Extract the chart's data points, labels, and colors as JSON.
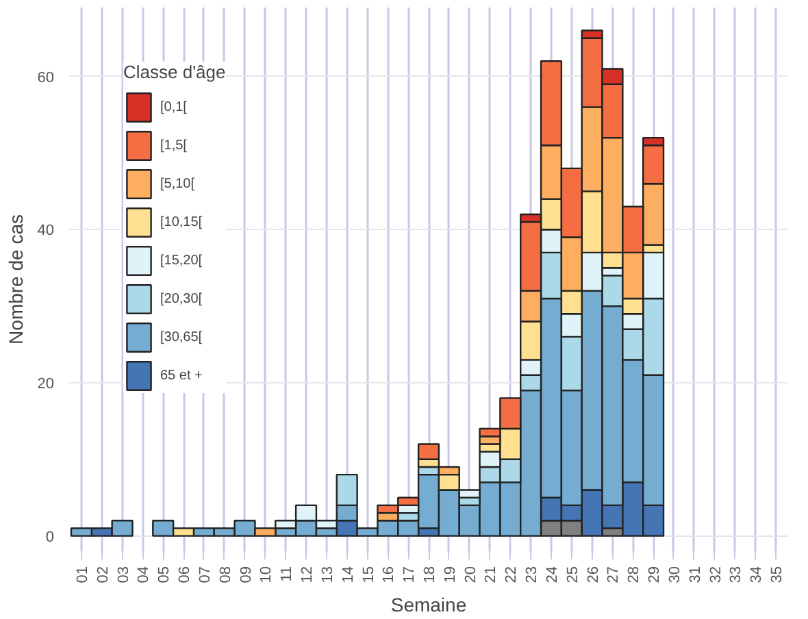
{
  "chart_data": {
    "type": "bar",
    "stacked": true,
    "xlabel": "Semaine",
    "ylabel": "Nombre de cas",
    "legend_title": "Classe d'âge",
    "legend": "top left",
    "grid": true,
    "categories": [
      "01",
      "02",
      "03",
      "04",
      "05",
      "06",
      "07",
      "08",
      "09",
      "10",
      "11",
      "12",
      "13",
      "14",
      "15",
      "16",
      "17",
      "18",
      "19",
      "20",
      "21",
      "22",
      "23",
      "24",
      "25",
      "26",
      "27",
      "28",
      "29",
      "30",
      "31",
      "32",
      "33",
      "34",
      "35"
    ],
    "ylim": [
      -2,
      69
    ],
    "yticks": [
      0,
      20,
      40,
      60
    ],
    "series": [
      {
        "color": "#808080",
        "values": [
          0,
          0,
          0,
          0,
          0,
          0,
          0,
          0,
          0,
          0,
          0,
          0,
          0,
          0,
          0,
          0,
          0,
          0,
          0,
          0,
          0,
          0,
          0,
          2,
          2,
          0,
          1,
          0,
          0,
          0,
          0,
          0,
          0,
          0,
          0
        ]
      },
      {
        "name": "65 et +",
        "color": "#4575b4",
        "values": [
          0,
          1,
          0,
          0,
          0,
          0,
          0,
          0,
          0,
          0,
          0,
          0,
          0,
          2,
          0,
          0,
          0,
          1,
          0,
          0,
          0,
          0,
          0,
          3,
          2,
          6,
          3,
          7,
          4,
          0,
          0,
          0,
          0,
          0,
          0
        ]
      },
      {
        "name": "[30,65[",
        "color": "#74add1",
        "values": [
          1,
          0,
          2,
          0,
          2,
          0,
          1,
          1,
          2,
          0,
          1,
          2,
          1,
          2,
          1,
          2,
          2,
          7,
          6,
          4,
          7,
          7,
          19,
          26,
          15,
          26,
          26,
          16,
          17,
          0,
          0,
          0,
          0,
          0,
          0
        ]
      },
      {
        "name": "[20,30[",
        "color": "#abd9e9",
        "values": [
          0,
          0,
          0,
          0,
          0,
          0,
          0,
          0,
          0,
          0,
          0,
          0,
          0,
          4,
          0,
          0,
          1,
          1,
          0,
          1,
          2,
          3,
          2,
          6,
          7,
          0,
          4,
          4,
          10,
          0,
          0,
          0,
          0,
          0,
          0
        ]
      },
      {
        "name": "[15,20[",
        "color": "#e0f3f8",
        "values": [
          0,
          0,
          0,
          0,
          0,
          0,
          0,
          0,
          0,
          0,
          1,
          2,
          1,
          0,
          0,
          0,
          1,
          0,
          0,
          1,
          2,
          0,
          2,
          3,
          3,
          5,
          1,
          2,
          6,
          0,
          0,
          0,
          0,
          0,
          0
        ]
      },
      {
        "name": "[10,15[",
        "color": "#fee090",
        "values": [
          0,
          0,
          0,
          0,
          0,
          1,
          0,
          0,
          0,
          0,
          0,
          0,
          0,
          0,
          0,
          0,
          0,
          1,
          2,
          0,
          1,
          4,
          5,
          4,
          3,
          8,
          2,
          2,
          1,
          0,
          0,
          0,
          0,
          0,
          0
        ]
      },
      {
        "name": "[5,10[",
        "color": "#fdae61",
        "values": [
          0,
          0,
          0,
          0,
          0,
          0,
          0,
          0,
          0,
          1,
          0,
          0,
          0,
          0,
          0,
          1,
          0,
          0,
          1,
          0,
          1,
          0,
          4,
          7,
          7,
          11,
          15,
          6,
          8,
          0,
          0,
          0,
          0,
          0,
          0
        ]
      },
      {
        "name": "[1,5[",
        "color": "#f46d43",
        "values": [
          0,
          0,
          0,
          0,
          0,
          0,
          0,
          0,
          0,
          0,
          0,
          0,
          0,
          0,
          0,
          1,
          1,
          2,
          0,
          0,
          1,
          4,
          9,
          11,
          9,
          9,
          7,
          6,
          5,
          0,
          0,
          0,
          0,
          0,
          0
        ]
      },
      {
        "name": "[0,1[",
        "color": "#d73027",
        "values": [
          0,
          0,
          0,
          0,
          0,
          0,
          0,
          0,
          0,
          0,
          0,
          0,
          0,
          0,
          0,
          0,
          0,
          0,
          0,
          0,
          0,
          0,
          1,
          0,
          0,
          1,
          2,
          0,
          1,
          0,
          0,
          0,
          0,
          0,
          0
        ]
      }
    ]
  }
}
